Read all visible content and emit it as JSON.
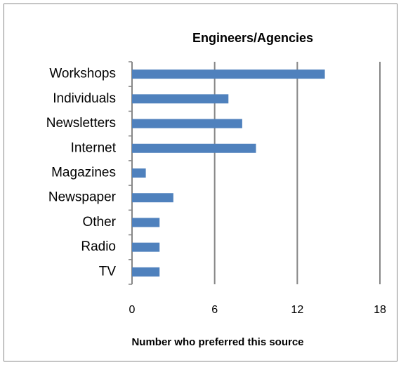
{
  "chart_data": {
    "type": "bar",
    "orientation": "horizontal",
    "title": "Engineers/Agencies",
    "categories": [
      "Workshops",
      "Individuals",
      "Newsletters",
      "Internet",
      "Magazines",
      "Newspaper",
      "Other",
      "Radio",
      "TV"
    ],
    "values": [
      14,
      7,
      8,
      9,
      1,
      3,
      2,
      2,
      2
    ],
    "color": "#4f81bd",
    "xlim": [
      0,
      18
    ],
    "xticks": [
      0,
      6,
      12,
      18
    ],
    "grid": true,
    "x_label": "Number who preferred this source"
  }
}
